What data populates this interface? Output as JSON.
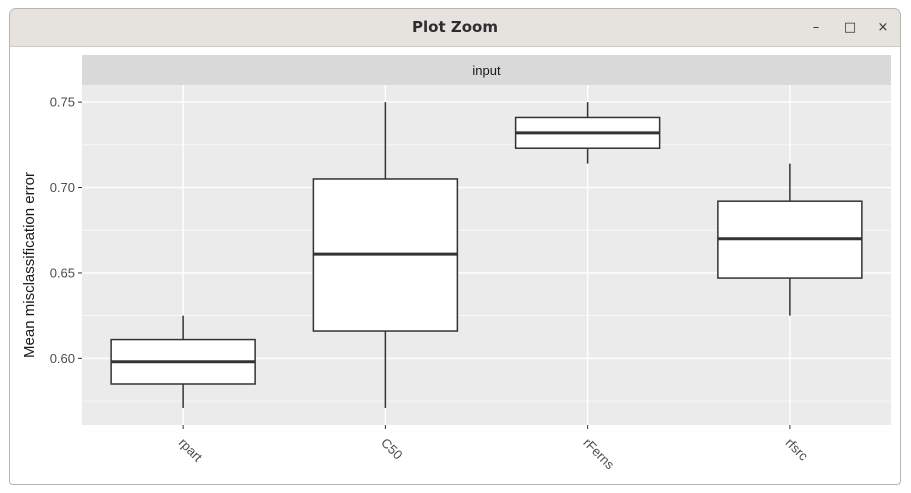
{
  "window": {
    "title": "Plot Zoom",
    "controls": {
      "minimize": "–",
      "maximize": "□",
      "close": "×"
    }
  },
  "chart_data": {
    "type": "box",
    "facet_label": "input",
    "xlabel": "",
    "ylabel": "Mean misclassification error",
    "ylim": [
      0.561,
      0.76
    ],
    "y_ticks": [
      0.6,
      0.65,
      0.7,
      0.75
    ],
    "y_tick_labels": [
      "0.60",
      "0.65",
      "0.70",
      "0.75"
    ],
    "categories": [
      "rpart",
      "C50",
      "rFerns",
      "rfsrc"
    ],
    "boxes": [
      {
        "category": "rpart",
        "min": 0.571,
        "q1": 0.585,
        "median": 0.598,
        "q3": 0.611,
        "max": 0.625
      },
      {
        "category": "C50",
        "min": 0.571,
        "q1": 0.616,
        "median": 0.661,
        "q3": 0.705,
        "max": 0.75
      },
      {
        "category": "rFerns",
        "min": 0.714,
        "q1": 0.723,
        "median": 0.732,
        "q3": 0.741,
        "max": 0.75
      },
      {
        "category": "rfsrc",
        "min": 0.625,
        "q1": 0.647,
        "median": 0.67,
        "q3": 0.692,
        "max": 0.714
      }
    ],
    "grid": true,
    "legend": "none",
    "colors": {
      "panel": "#ebebeb",
      "strip": "#d9d9d9",
      "gridline": "#ffffff",
      "box_fill": "#ffffff",
      "box_line": "#333333"
    }
  }
}
